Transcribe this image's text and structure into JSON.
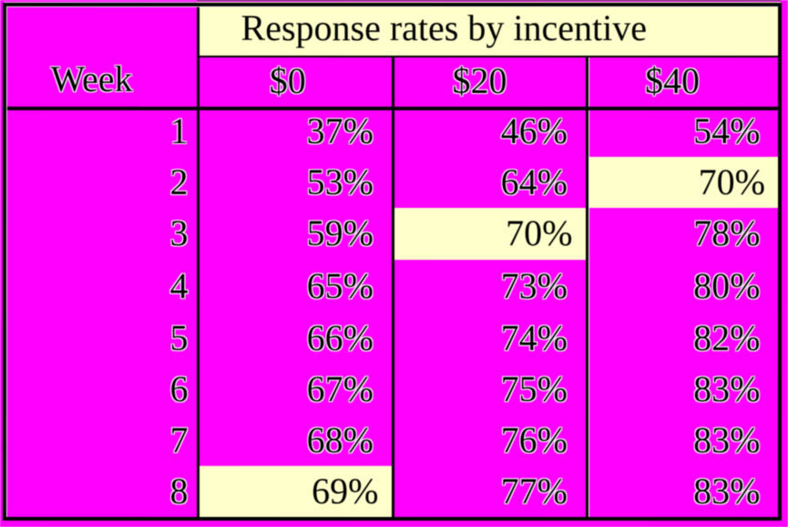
{
  "colors": {
    "page_background": "#FF00FF",
    "cell_background": "#FF00FF",
    "highlight_background": "#FFFFCC",
    "border": "#000000",
    "text": "#000000"
  },
  "table": {
    "caption": "Response rates by incentive",
    "row_header": "Week",
    "columns": [
      "$0",
      "$20",
      "$40"
    ],
    "rows": [
      {
        "week": "1",
        "values": [
          "37%",
          "46%",
          "54%"
        ]
      },
      {
        "week": "2",
        "values": [
          "53%",
          "64%",
          "70%"
        ]
      },
      {
        "week": "3",
        "values": [
          "59%",
          "70%",
          "78%"
        ]
      },
      {
        "week": "4",
        "values": [
          "65%",
          "73%",
          "80%"
        ]
      },
      {
        "week": "5",
        "values": [
          "66%",
          "74%",
          "82%"
        ]
      },
      {
        "week": "6",
        "values": [
          "67%",
          "75%",
          "83%"
        ]
      },
      {
        "week": "7",
        "values": [
          "68%",
          "76%",
          "83%"
        ]
      },
      {
        "week": "8",
        "values": [
          "69%",
          "77%",
          "83%"
        ]
      }
    ]
  },
  "chart_data": {
    "type": "table",
    "title": "Response rates by incentive",
    "xlabel": "Week",
    "units": "%",
    "categories": [
      1,
      2,
      3,
      4,
      5,
      6,
      7,
      8
    ],
    "series": [
      {
        "name": "$0",
        "values": [
          37,
          53,
          59,
          65,
          66,
          67,
          68,
          69
        ]
      },
      {
        "name": "$20",
        "values": [
          46,
          64,
          70,
          73,
          74,
          75,
          76,
          77
        ]
      },
      {
        "name": "$40",
        "values": [
          54,
          70,
          78,
          80,
          82,
          83,
          83,
          83
        ]
      }
    ],
    "highlighted_cells": [
      {
        "week": 2,
        "column": "$40",
        "value": 70
      },
      {
        "week": 3,
        "column": "$20",
        "value": 70
      },
      {
        "week": 8,
        "column": "$0",
        "value": 69
      }
    ]
  }
}
